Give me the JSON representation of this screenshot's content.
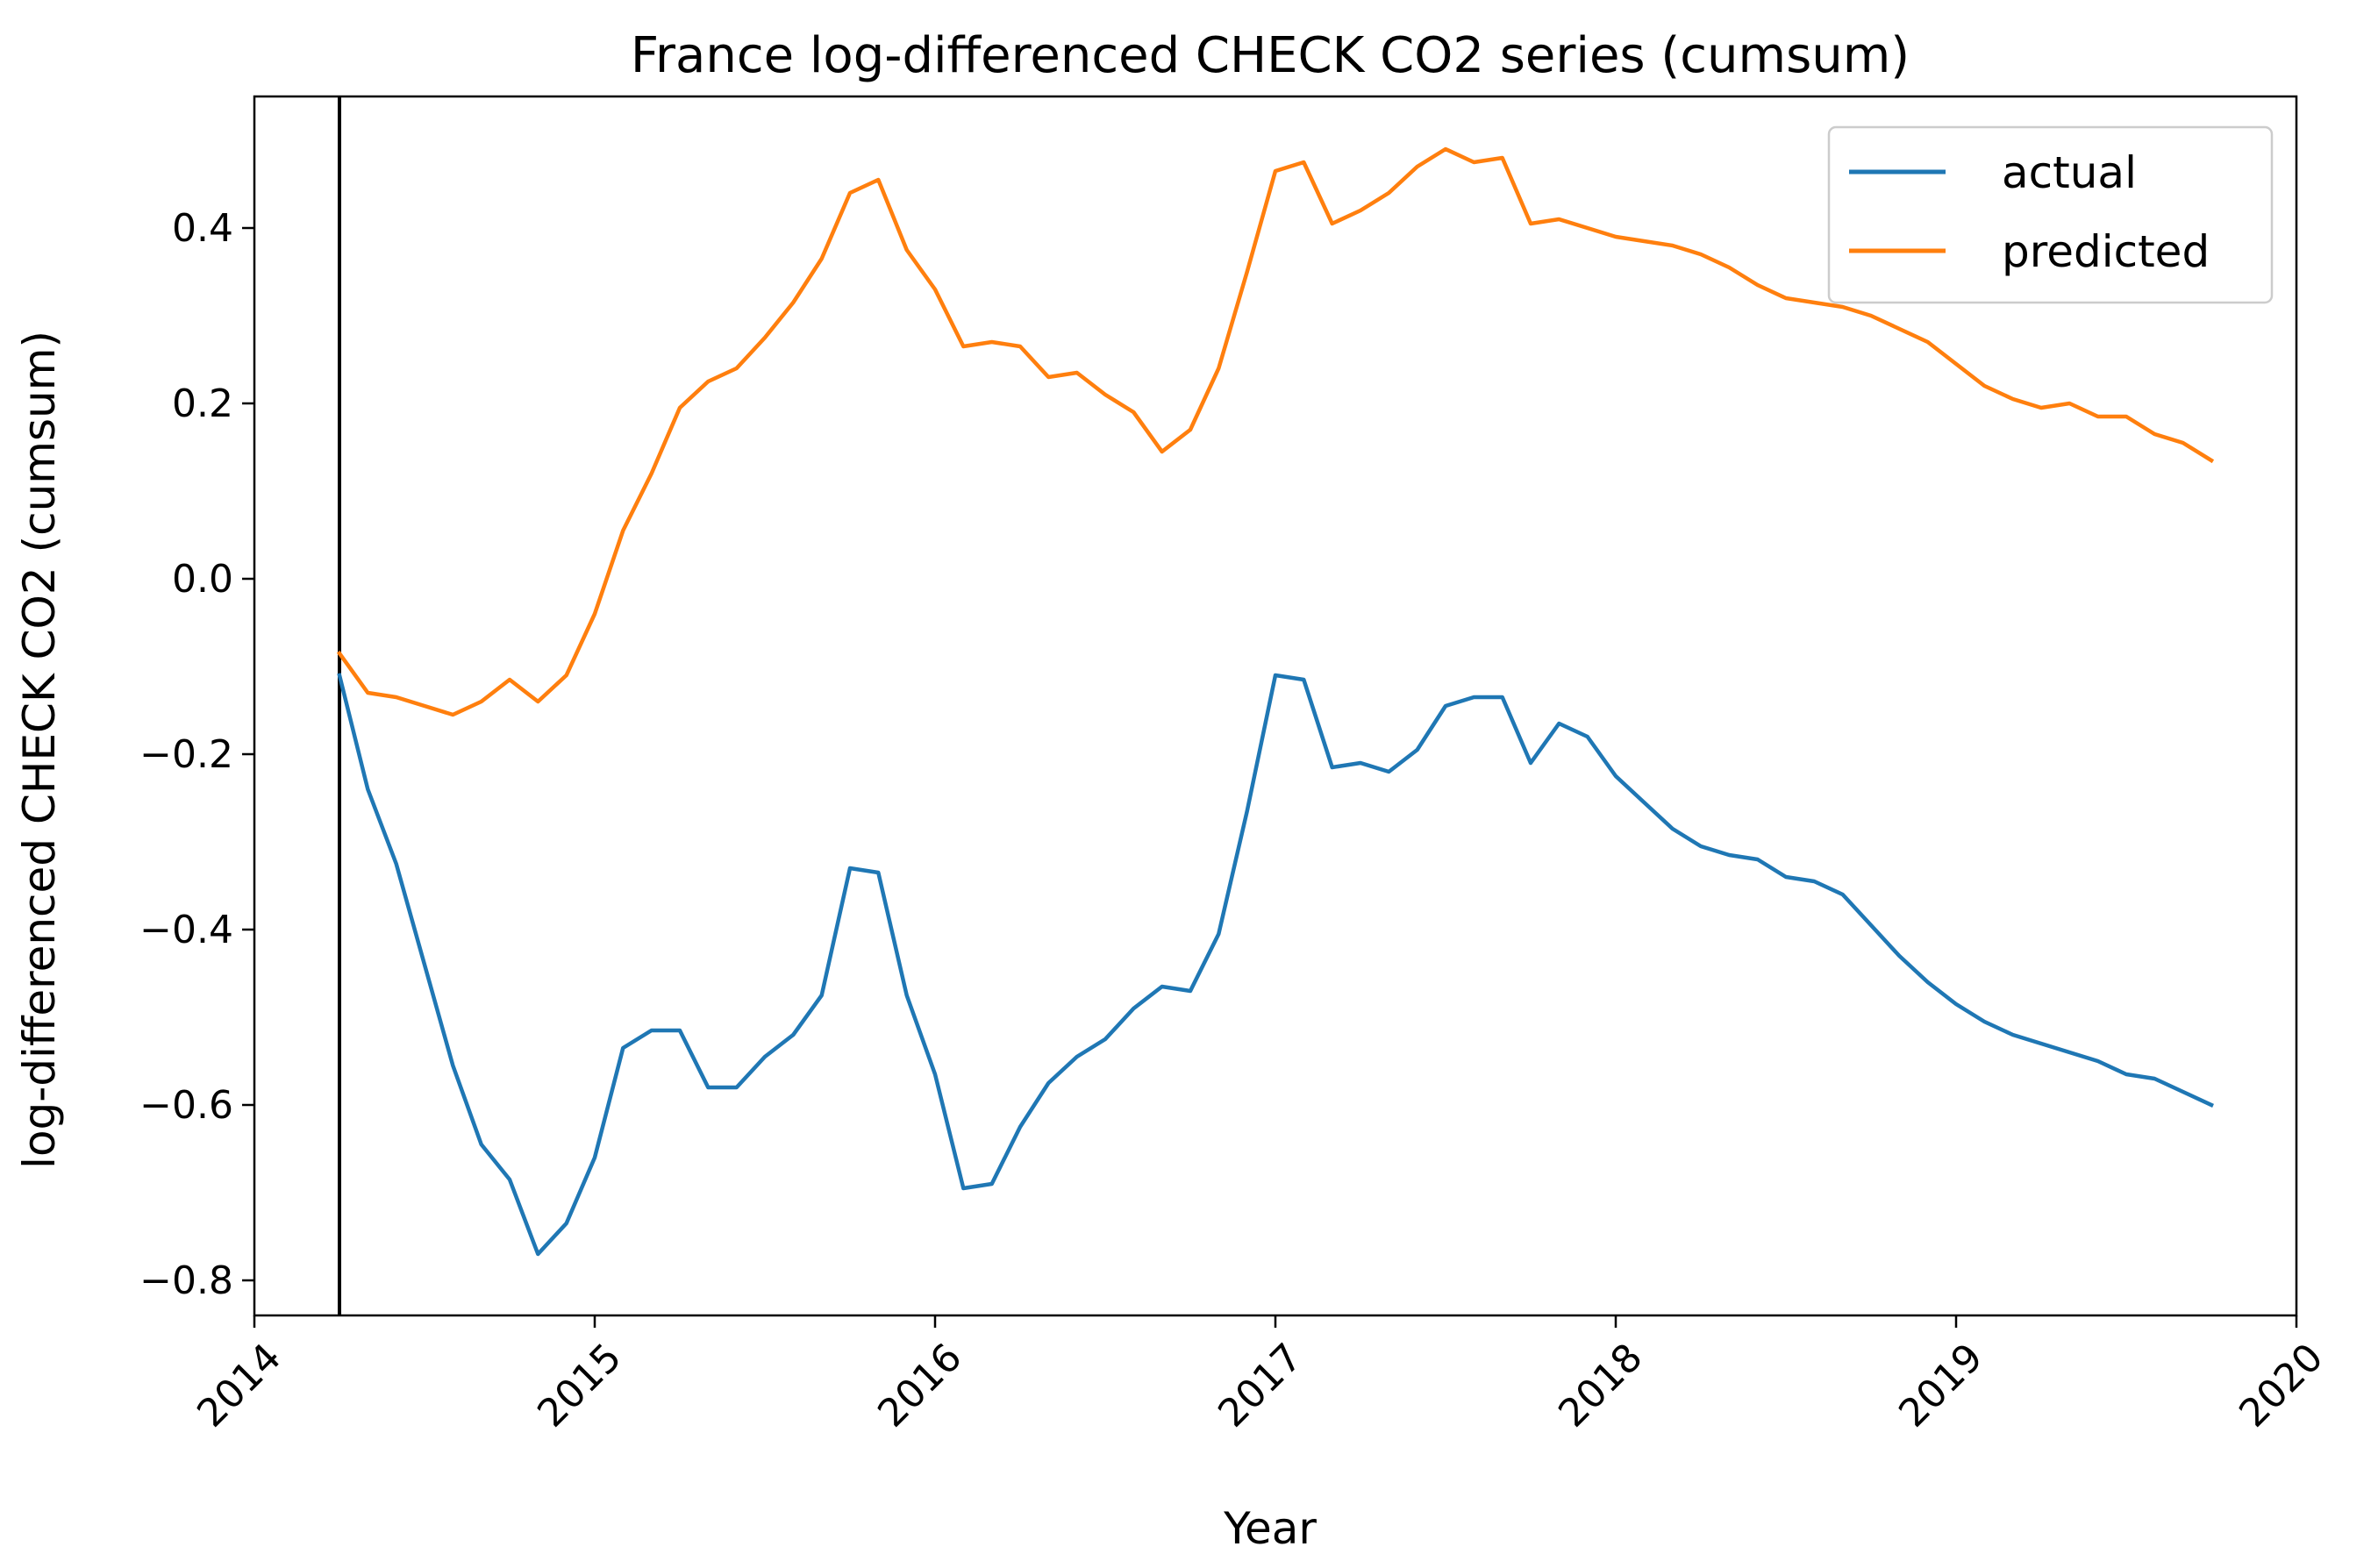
{
  "chart_data": {
    "type": "line",
    "title": "France log-differenced CHECK CO2 series (cumsum)",
    "xlabel": "Year",
    "ylabel": "log-differenced CHECK CO2 (cumsum)",
    "xlim": [
      "2014-01",
      "2020-01"
    ],
    "ylim": [
      -0.84,
      0.55
    ],
    "x_ticks": [
      "2014",
      "2015",
      "2016",
      "2017",
      "2018",
      "2019",
      "2020"
    ],
    "y_ticks": [
      {
        "value": -0.8,
        "label": "−0.8"
      },
      {
        "value": -0.6,
        "label": "−0.6"
      },
      {
        "value": -0.4,
        "label": "−0.4"
      },
      {
        "value": -0.2,
        "label": "−0.2"
      },
      {
        "value": 0.0,
        "label": "0.0"
      },
      {
        "value": 0.2,
        "label": "0.2"
      },
      {
        "value": 0.4,
        "label": "0.4"
      }
    ],
    "grid": false,
    "legend": "top-right",
    "vline_x": "2014-04",
    "x": [
      "2014-04",
      "2014-05",
      "2014-06",
      "2014-07",
      "2014-08",
      "2014-09",
      "2014-10",
      "2014-11",
      "2014-12",
      "2015-01",
      "2015-02",
      "2015-03",
      "2015-04",
      "2015-05",
      "2015-06",
      "2015-07",
      "2015-08",
      "2015-09",
      "2015-10",
      "2015-11",
      "2015-12",
      "2016-01",
      "2016-02",
      "2016-03",
      "2016-04",
      "2016-05",
      "2016-06",
      "2016-07",
      "2016-08",
      "2016-09",
      "2016-10",
      "2016-11",
      "2016-12",
      "2017-01",
      "2017-02",
      "2017-03",
      "2017-04",
      "2017-05",
      "2017-06",
      "2017-07",
      "2017-08",
      "2017-09",
      "2017-10",
      "2017-11",
      "2017-12",
      "2018-01",
      "2018-02",
      "2018-03",
      "2018-04",
      "2018-05",
      "2018-06",
      "2018-07",
      "2018-08",
      "2018-09",
      "2018-10",
      "2018-11",
      "2018-12",
      "2019-01",
      "2019-02",
      "2019-03",
      "2019-04",
      "2019-05",
      "2019-06",
      "2019-07",
      "2019-08",
      "2019-09",
      "2019-10"
    ],
    "series": [
      {
        "name": "actual",
        "color": "#1f77b4",
        "values": [
          -0.11,
          -0.24,
          -0.325,
          -0.44,
          -0.555,
          -0.645,
          -0.685,
          -0.77,
          -0.735,
          -0.66,
          -0.535,
          -0.515,
          -0.515,
          -0.58,
          -0.58,
          -0.545,
          -0.52,
          -0.475,
          -0.33,
          -0.335,
          -0.475,
          -0.565,
          -0.695,
          -0.69,
          -0.625,
          -0.575,
          -0.545,
          -0.525,
          -0.49,
          -0.465,
          -0.47,
          -0.405,
          -0.265,
          -0.11,
          -0.115,
          -0.215,
          -0.21,
          -0.22,
          -0.195,
          -0.145,
          -0.135,
          -0.135,
          -0.21,
          -0.165,
          -0.18,
          -0.225,
          -0.255,
          -0.285,
          -0.305,
          -0.315,
          -0.32,
          -0.34,
          -0.345,
          -0.36,
          -0.395,
          -0.43,
          -0.46,
          -0.485,
          -0.505,
          -0.52,
          -0.53,
          -0.54,
          -0.55,
          -0.565,
          -0.57,
          -0.585,
          -0.6
        ]
      },
      {
        "name": "predicted",
        "color": "#ff7f0e",
        "values": [
          -0.085,
          -0.13,
          -0.135,
          -0.145,
          -0.155,
          -0.14,
          -0.115,
          -0.14,
          -0.11,
          -0.04,
          0.055,
          0.12,
          0.195,
          0.225,
          0.24,
          0.275,
          0.315,
          0.365,
          0.44,
          0.455,
          0.375,
          0.33,
          0.265,
          0.27,
          0.265,
          0.23,
          0.235,
          0.21,
          0.19,
          0.145,
          0.17,
          0.24,
          0.35,
          0.465,
          0.475,
          0.405,
          0.42,
          0.44,
          0.47,
          0.49,
          0.475,
          0.48,
          0.405,
          0.41,
          0.4,
          0.39,
          0.385,
          0.38,
          0.37,
          0.355,
          0.335,
          0.32,
          0.315,
          0.31,
          0.3,
          0.285,
          0.27,
          0.245,
          0.22,
          0.205,
          0.195,
          0.2,
          0.185,
          0.185,
          0.165,
          0.155,
          0.135
        ]
      }
    ]
  }
}
